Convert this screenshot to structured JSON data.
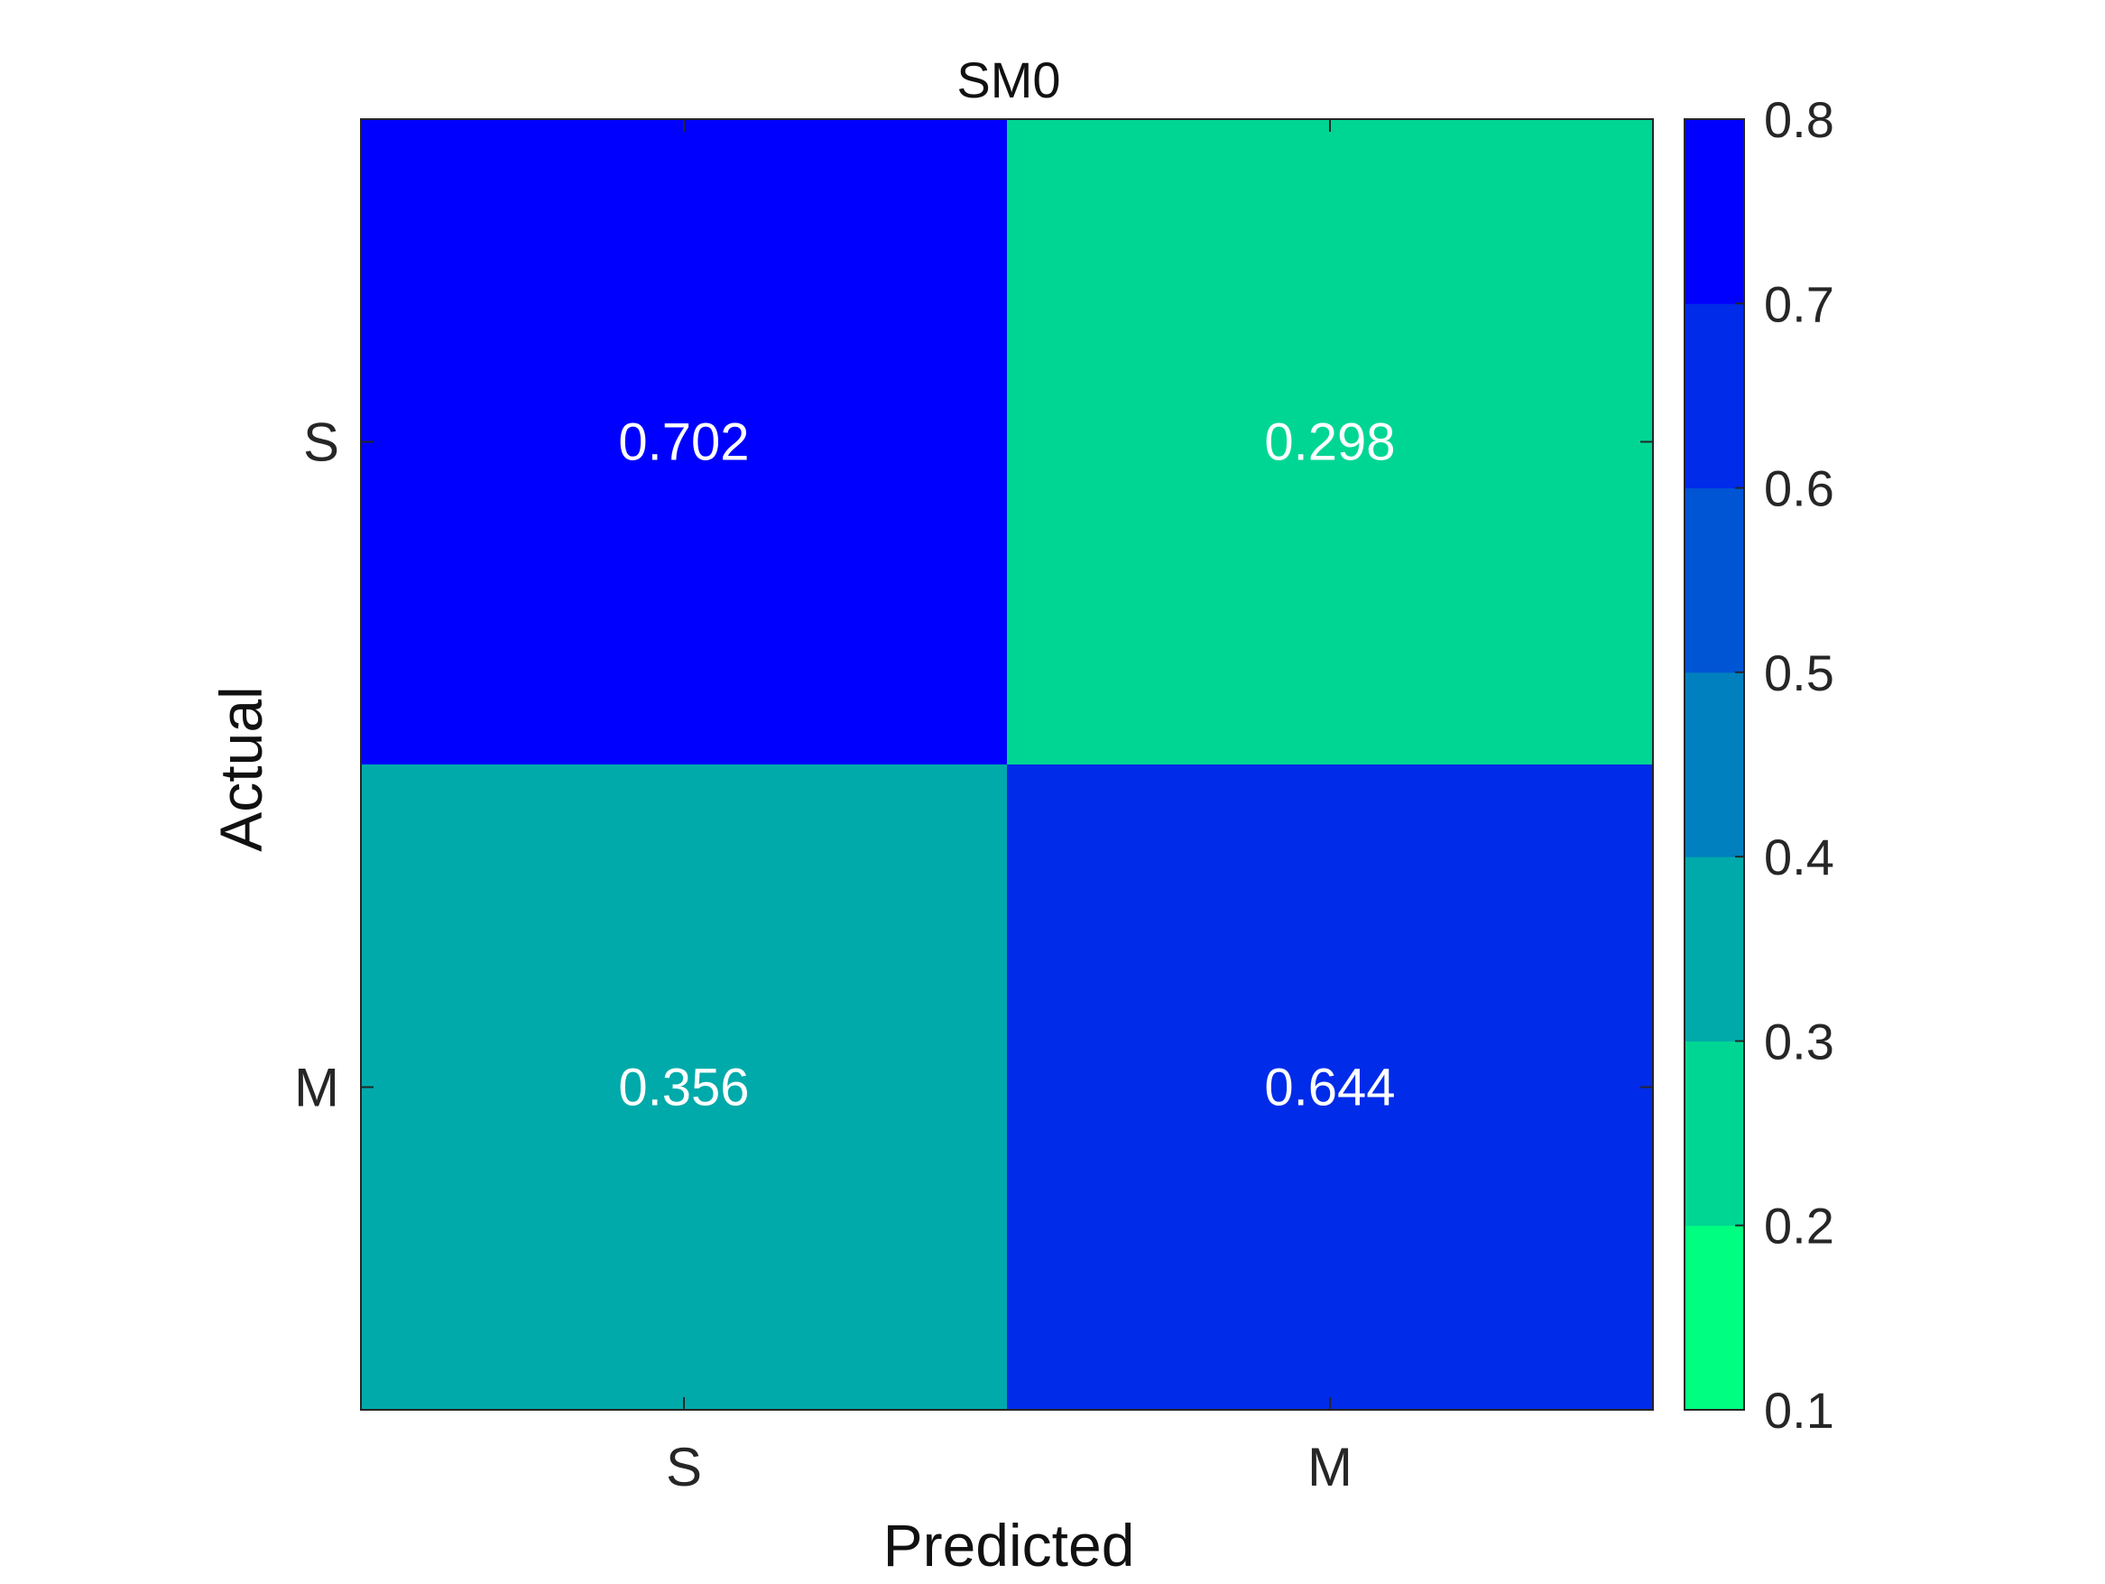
{
  "chart_data": {
    "type": "heatmap",
    "title": "SM0",
    "xlabel": "Predicted",
    "ylabel": "Actual",
    "x_categories": [
      "S",
      "M"
    ],
    "y_categories": [
      "S",
      "M"
    ],
    "values": [
      [
        0.702,
        0.298
      ],
      [
        0.356,
        0.644
      ]
    ],
    "cell_labels": [
      [
        "0.702",
        "0.298"
      ],
      [
        "0.356",
        "0.644"
      ]
    ],
    "colorbar": {
      "range": [
        0.1,
        0.8
      ],
      "ticks": [
        "0.8",
        "0.7",
        "0.6",
        "0.5",
        "0.4",
        "0.3",
        "0.2",
        "0.1"
      ],
      "bins_low_to_high": [
        "#00ff80",
        "#00d694",
        "#00aaaa",
        "#0080bf",
        "#0055d4",
        "#002be9",
        "#0000ff"
      ]
    },
    "cell_text_color": "#ffffff"
  }
}
